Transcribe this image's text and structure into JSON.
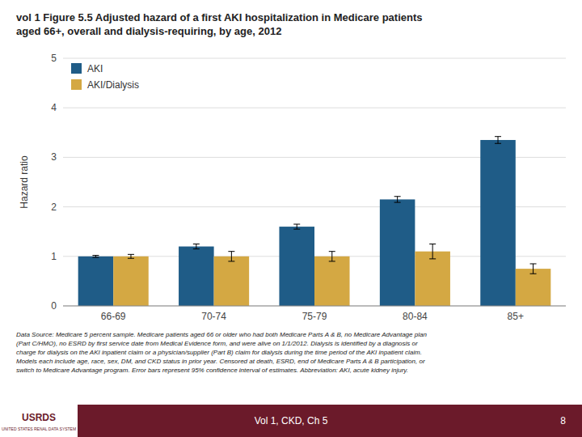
{
  "chart_data": {
    "type": "bar",
    "title": "vol 1 Figure 5.5  Adjusted hazard of a first AKI hospitalization in Medicare patients\naged 66+, overall and dialysis-requiring, by age, 2012",
    "categories": [
      "66-69",
      "70-74",
      "75-79",
      "80-84",
      "85+"
    ],
    "series": [
      {
        "name": "AKI",
        "color": "#1F5C87",
        "values": [
          1.0,
          1.2,
          1.6,
          2.15,
          3.35
        ],
        "errors": [
          0.02,
          0.05,
          0.05,
          0.06,
          0.07
        ]
      },
      {
        "name": "AKI/Dialysis",
        "color": "#D4A843",
        "values": [
          1.0,
          1.0,
          1.0,
          1.1,
          0.75
        ],
        "errors": [
          0.04,
          0.1,
          0.1,
          0.15,
          0.1
        ]
      }
    ],
    "ylabel": "Hazard ratio",
    "ylim": [
      0,
      5
    ],
    "yticks": [
      0,
      1,
      2,
      3,
      4,
      5
    ],
    "grid": true,
    "legend": "upper left",
    "annotations": [
      "Data Source: Medicare 5 percent sample. Medicare patients aged 66 or older who had both Medicare Parts A & B, no Medicare Advantage plan\n(Part C/HMO), no ESRD by first service date from Medical Evidence form, and were alive on 1/1/2012. Dialysis is identified by a diagnosis or\ncharge for dialysis on the AKI inpatient claim or a physician/supplier (Part B) claim for dialysis during the time period of the AKI inpatient claim.\nModels each include age, race, sex, DM, and CKD status in prior year. Censored at death, ESRD, end of Medicare Parts A & B participation, or\nswitch to Medicare Advantage program. Error bars represent 95% confidence interval of estimates. Abbreviation: AKI, acute kidney injury.",
      "USRDS",
      "UNITED STATES RENAL DATA SYSTEM",
      "Vol 1, CKD, Ch 5",
      "8"
    ]
  }
}
